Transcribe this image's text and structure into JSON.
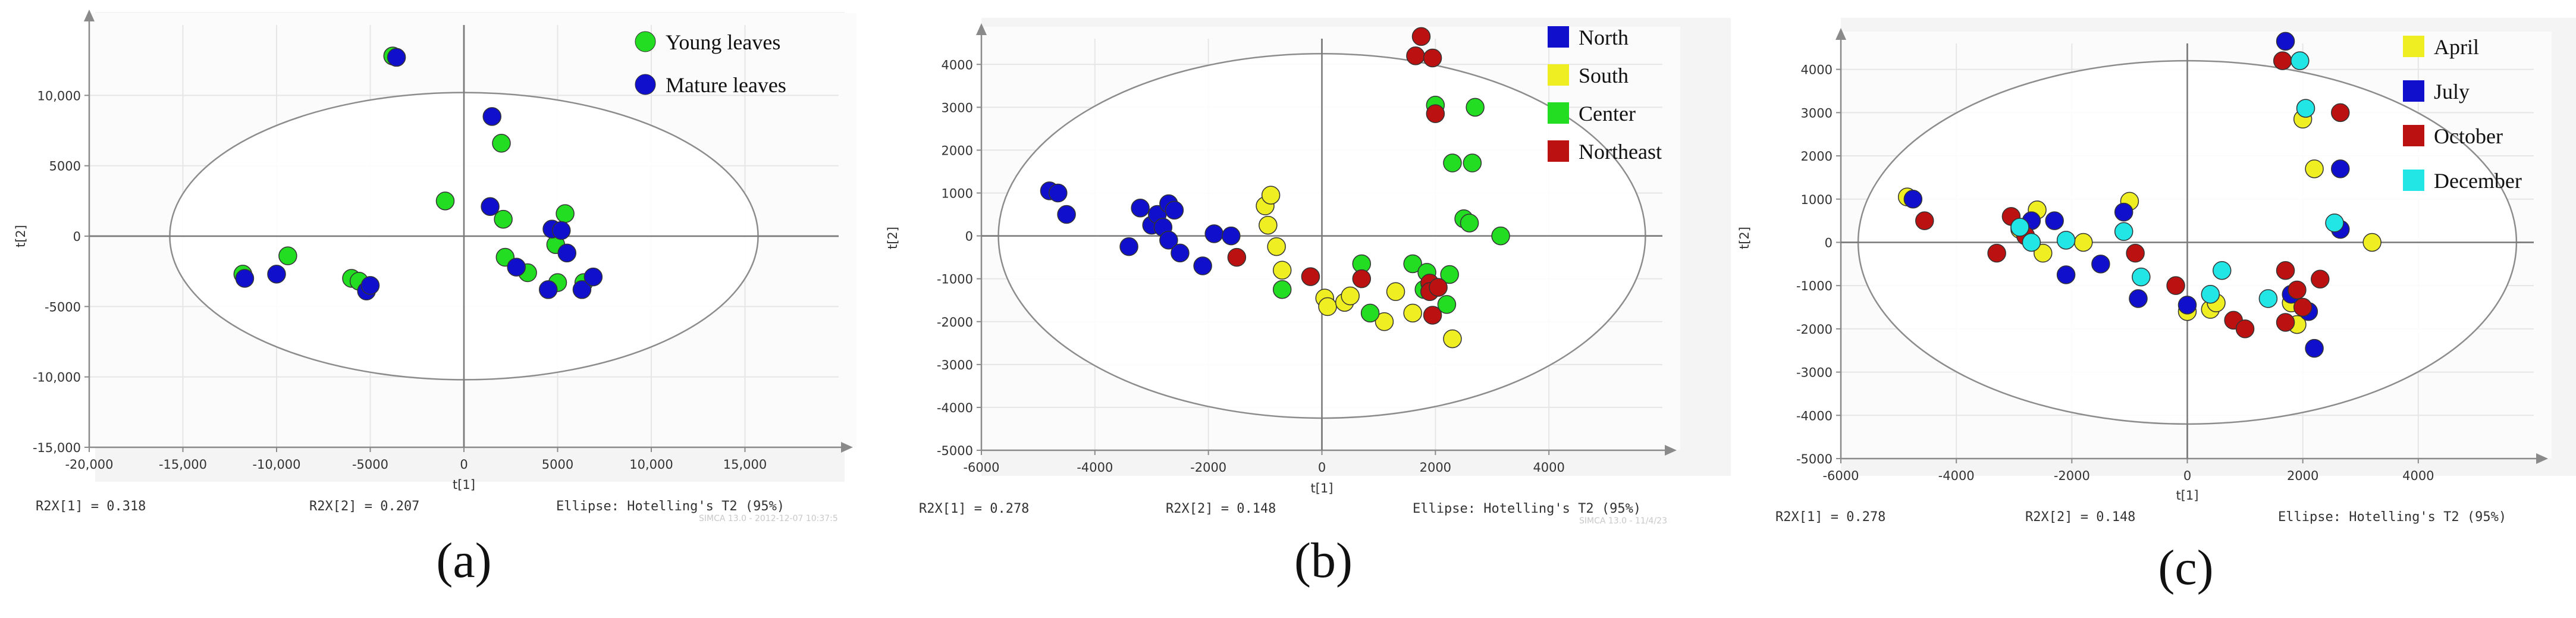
{
  "chart_data": [
    {
      "type": "scatter",
      "panel_label": "(a)",
      "xlabel": "t[1]",
      "ylabel": "t[2]",
      "xlim": [
        -20000,
        20000
      ],
      "ylim": [
        -15000,
        15000
      ],
      "xticks": [
        -20000,
        -15000,
        -10000,
        -5000,
        0,
        5000,
        10000,
        15000
      ],
      "xtick_labels": [
        "-20,000",
        "-15,000",
        "-10,000",
        "-5000",
        "0",
        "5000",
        "10,000",
        "15,000"
      ],
      "yticks": [
        -15000,
        -10000,
        -5000,
        0,
        5000,
        10000
      ],
      "ytick_labels": [
        "-15,000",
        "-10,000",
        "-5000",
        "0",
        "5000",
        "10,000"
      ],
      "ellipse": {
        "rx": 15700,
        "ry": 10200
      },
      "footer": {
        "r2x1": "R2X[1] = 0.318",
        "r2x2": "R2X[2] = 0.207",
        "ellipse_label": "Ellipse: Hotelling's T2 (95%)"
      },
      "watermark": "SIMCA 13.0 - 2012-12-07 10:37:5",
      "legend_shape": "circle",
      "series": [
        {
          "name": "Young leaves",
          "color": "#22dd22",
          "points": [
            [
              -11800,
              -2700
            ],
            [
              -9400,
              -1400
            ],
            [
              -6000,
              -3000
            ],
            [
              -5600,
              -3200
            ],
            [
              -1000,
              2500
            ],
            [
              2000,
              6600
            ],
            [
              2100,
              1200
            ],
            [
              2200,
              -1500
            ],
            [
              3400,
              -2600
            ],
            [
              4900,
              -600
            ],
            [
              5000,
              -3300
            ],
            [
              5400,
              1600
            ],
            [
              6400,
              -3300
            ],
            [
              -3800,
              12800
            ]
          ]
        },
        {
          "name": "Mature leaves",
          "color": "#1010cc",
          "points": [
            [
              -11700,
              -3000
            ],
            [
              -10000,
              -2700
            ],
            [
              -5200,
              -3900
            ],
            [
              -5000,
              -3500
            ],
            [
              -3600,
              12700
            ],
            [
              1400,
              2100
            ],
            [
              1500,
              8500
            ],
            [
              2800,
              -2200
            ],
            [
              4500,
              -3800
            ],
            [
              4700,
              500
            ],
            [
              5200,
              400
            ],
            [
              5500,
              -1200
            ],
            [
              6300,
              -3800
            ],
            [
              6900,
              -2900
            ]
          ]
        }
      ]
    },
    {
      "type": "scatter",
      "panel_label": "(b)",
      "xlabel": "t[1]",
      "ylabel": "t[2]",
      "xlim": [
        -6000,
        6000
      ],
      "ylim": [
        -5000,
        4600
      ],
      "xticks": [
        -6000,
        -4000,
        -2000,
        0,
        2000,
        4000
      ],
      "xtick_labels": [
        "-6000",
        "-4000",
        "-2000",
        "0",
        "2000",
        "4000"
      ],
      "yticks": [
        -5000,
        -4000,
        -3000,
        -2000,
        -1000,
        0,
        1000,
        2000,
        3000,
        4000
      ],
      "ytick_labels": [
        "-5000",
        "-4000",
        "-3000",
        "-2000",
        "-1000",
        "0",
        "1000",
        "2000",
        "3000",
        "4000"
      ],
      "ellipse": {
        "rx": 5700,
        "ry": 4250
      },
      "footer": {
        "r2x1": "R2X[1] = 0.278",
        "r2x2": "R2X[2] = 0.148",
        "ellipse_label": "Ellipse: Hotelling's T2 (95%)"
      },
      "watermark": "SIMCA 13.0 - 11/4/23",
      "legend_shape": "square",
      "series": [
        {
          "name": "North",
          "color": "#1010cc",
          "points": [
            [
              -4800,
              1050
            ],
            [
              -4650,
              1000
            ],
            [
              -4500,
              500
            ],
            [
              -3400,
              -250
            ],
            [
              -3200,
              650
            ],
            [
              -3000,
              250
            ],
            [
              -2900,
              500
            ],
            [
              -2800,
              200
            ],
            [
              -2700,
              750
            ],
            [
              -2600,
              600
            ],
            [
              -2700,
              -100
            ],
            [
              -2500,
              -400
            ],
            [
              -2100,
              -700
            ],
            [
              -1900,
              50
            ],
            [
              -1600,
              0
            ]
          ]
        },
        {
          "name": "South",
          "color": "#eeee22",
          "points": [
            [
              -1000,
              700
            ],
            [
              -900,
              950
            ],
            [
              -950,
              250
            ],
            [
              -800,
              -250
            ],
            [
              -700,
              -800
            ],
            [
              50,
              -1450
            ],
            [
              100,
              -1650
            ],
            [
              400,
              -1550
            ],
            [
              500,
              -1400
            ],
            [
              1100,
              -2000
            ],
            [
              1300,
              -1300
            ],
            [
              1600,
              -1800
            ],
            [
              1900,
              -1250
            ],
            [
              2300,
              -2400
            ]
          ]
        },
        {
          "name": "Center",
          "color": "#22dd22",
          "points": [
            [
              -700,
              -1250
            ],
            [
              700,
              -650
            ],
            [
              850,
              -1800
            ],
            [
              1600,
              -650
            ],
            [
              1800,
              -1250
            ],
            [
              1850,
              -850
            ],
            [
              1900,
              -1300
            ],
            [
              2000,
              3050
            ],
            [
              2200,
              -1600
            ],
            [
              2250,
              -900
            ],
            [
              2300,
              1700
            ],
            [
              2500,
              400
            ],
            [
              2600,
              300
            ],
            [
              2650,
              1700
            ],
            [
              2700,
              3000
            ],
            [
              3150,
              0
            ]
          ]
        },
        {
          "name": "Northeast",
          "color": "#bb1111",
          "points": [
            [
              -1500,
              -500
            ],
            [
              -200,
              -950
            ],
            [
              700,
              -1000
            ],
            [
              1650,
              4200
            ],
            [
              1750,
              4650
            ],
            [
              1950,
              4150
            ],
            [
              2000,
              2850
            ],
            [
              1900,
              -1100
            ],
            [
              1900,
              -1300
            ],
            [
              1950,
              -1850
            ],
            [
              2050,
              -1200
            ]
          ]
        }
      ]
    },
    {
      "type": "scatter",
      "panel_label": "(c)",
      "xlabel": "t[1]",
      "ylabel": "t[2]",
      "xlim": [
        -6000,
        6000
      ],
      "ylim": [
        -5000,
        4600
      ],
      "xticks": [
        -6000,
        -4000,
        -2000,
        0,
        2000,
        4000
      ],
      "xtick_labels": [
        "-6000",
        "-4000",
        "-2000",
        "0",
        "2000",
        "4000"
      ],
      "yticks": [
        -5000,
        -4000,
        -3000,
        -2000,
        -1000,
        0,
        1000,
        2000,
        3000,
        4000
      ],
      "ytick_labels": [
        "-5000",
        "-4000",
        "-3000",
        "-2000",
        "-1000",
        "0",
        "1000",
        "2000",
        "3000",
        "4000"
      ],
      "ellipse": {
        "rx": 5700,
        "ry": 4200
      },
      "footer": {
        "r2x1": "R2X[1] = 0.278",
        "r2x2": "R2X[2] = 0.148",
        "ellipse_label": "Ellipse: Hotelling's T2 (95%)"
      },
      "watermark": "",
      "legend_shape": "square",
      "series": [
        {
          "name": "April",
          "color": "#eeee22",
          "points": [
            [
              -4850,
              1050
            ],
            [
              -2900,
              300
            ],
            [
              -2600,
              750
            ],
            [
              -2500,
              -250
            ],
            [
              -1800,
              0
            ],
            [
              -1000,
              950
            ],
            [
              0,
              -1600
            ],
            [
              400,
              -1550
            ],
            [
              500,
              -1400
            ],
            [
              1800,
              -1400
            ],
            [
              1900,
              -1900
            ],
            [
              2000,
              2850
            ],
            [
              2200,
              1700
            ],
            [
              3200,
              0
            ]
          ]
        },
        {
          "name": "July",
          "color": "#1010cc",
          "points": [
            [
              -4750,
              1000
            ],
            [
              -2900,
              350
            ],
            [
              -2700,
              500
            ],
            [
              -2300,
              500
            ],
            [
              -2100,
              -750
            ],
            [
              -1500,
              -500
            ],
            [
              -1100,
              700
            ],
            [
              -850,
              -1300
            ],
            [
              0,
              -1450
            ],
            [
              1800,
              -1200
            ],
            [
              1700,
              4650
            ],
            [
              2100,
              -1600
            ],
            [
              2200,
              -2450
            ],
            [
              2650,
              1700
            ],
            [
              2650,
              300
            ]
          ]
        },
        {
          "name": "October",
          "color": "#bb1111",
          "points": [
            [
              -4550,
              500
            ],
            [
              -3300,
              -250
            ],
            [
              -3050,
              600
            ],
            [
              -2800,
              150
            ],
            [
              -900,
              -250
            ],
            [
              -200,
              -1000
            ],
            [
              800,
              -1800
            ],
            [
              1000,
              -2000
            ],
            [
              1650,
              4200
            ],
            [
              1700,
              -650
            ],
            [
              1700,
              -1850
            ],
            [
              1900,
              -1100
            ],
            [
              2300,
              -850
            ],
            [
              2650,
              3000
            ],
            [
              2000,
              -1500
            ]
          ]
        },
        {
          "name": "December",
          "color": "#22e5e5",
          "points": [
            [
              -2900,
              350
            ],
            [
              -2700,
              0
            ],
            [
              -2100,
              50
            ],
            [
              -1100,
              250
            ],
            [
              -800,
              -800
            ],
            [
              400,
              -1200
            ],
            [
              600,
              -650
            ],
            [
              1400,
              -1300
            ],
            [
              1950,
              4200
            ],
            [
              2050,
              3100
            ],
            [
              2550,
              450
            ]
          ]
        }
      ]
    }
  ]
}
